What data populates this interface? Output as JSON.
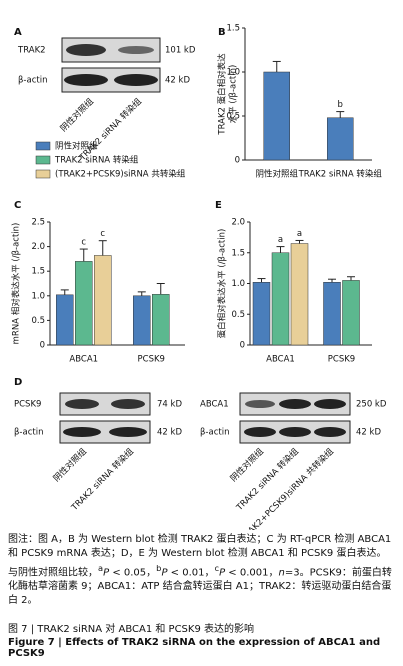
{
  "panel_a": {
    "label": "A",
    "bands": [
      "TRAK2",
      "β-actin"
    ],
    "sizes": [
      "101 kD",
      "42 kD"
    ],
    "lanes": [
      "阴性对照组",
      "TRAK2 siRNA 转染组"
    ]
  },
  "panel_d": {
    "label": "D",
    "left": {
      "bands": [
        "PCSK9",
        "β-actin"
      ],
      "sizes": [
        "74 kD",
        "42 kD"
      ],
      "lanes": [
        "阴性对照组",
        "TRAK2 siRNA 转染组"
      ]
    },
    "right": {
      "bands": [
        "ABCA1",
        "β-actin"
      ],
      "sizes": [
        "250 kD",
        "42 kD"
      ],
      "lanes": [
        "阴性对照组",
        "TRAK2 siRNA 转染组",
        "(TRAK2+PCSK9)siRNA 共转染组"
      ]
    }
  },
  "chart_data": [
    {
      "type": "bar",
      "panel": "B",
      "ylabel": [
        "TRAK2 蛋白相对表达",
        "水平 (/β-actin)"
      ],
      "categories": [
        "阴性对照组",
        "TRAK2 siRNA 转染组"
      ],
      "values": [
        1.0,
        0.48
      ],
      "errors": [
        0.12,
        0.07
      ],
      "annotations": [
        null,
        "b"
      ],
      "colors": [
        "#4a7ebb",
        "#4a7ebb"
      ],
      "ylim": [
        0,
        1.5
      ],
      "yticks": [
        0,
        0.5,
        {
          "value": 1,
          "label": "1.0"
        },
        1.5
      ]
    },
    {
      "type": "bar",
      "panel": "C",
      "ylabel": "mRNA 相对表达水平 (/β-actin)",
      "categories": [
        "ABCA1",
        "PCSK9"
      ],
      "series": [
        {
          "name": "阴性对照组",
          "color": "#4a7ebb",
          "values": [
            1.02,
            1.0
          ],
          "errors": [
            0.1,
            0.08
          ],
          "annotations": [
            null,
            null
          ]
        },
        {
          "name": "TRAK2 siRNA 转染组",
          "color": "#5cb88f",
          "values": [
            1.7,
            1.03
          ],
          "errors": [
            0.25,
            0.22
          ],
          "annotations": [
            "c",
            null
          ]
        },
        {
          "name": "(TRAK2+PCSK9)siRNA 共转染组",
          "color": "#e8cf98",
          "values": [
            1.82,
            null
          ],
          "errors": [
            0.3,
            null
          ],
          "annotations": [
            "c",
            null
          ]
        }
      ],
      "ylim": [
        0,
        2.5
      ],
      "yticks": [
        0,
        0.5,
        {
          "value": 1,
          "label": "1.0"
        },
        1.5,
        {
          "value": 2,
          "label": "2.0"
        },
        2.5
      ]
    },
    {
      "type": "bar",
      "panel": "E",
      "ylabel": "蛋白相对表达水平 (/β-actin)",
      "categories": [
        "ABCA1",
        "PCSK9"
      ],
      "series": [
        {
          "color": "#4a7ebb",
          "values": [
            1.02,
            1.02
          ],
          "errors": [
            0.06,
            0.05
          ],
          "annotations": [
            null,
            null
          ]
        },
        {
          "color": "#5cb88f",
          "values": [
            1.5,
            1.05
          ],
          "errors": [
            0.1,
            0.06
          ],
          "annotations": [
            "a",
            null
          ]
        },
        {
          "color": "#e8cf98",
          "values": [
            1.65,
            null
          ],
          "errors": [
            0.05,
            null
          ],
          "annotations": [
            "a",
            null
          ]
        }
      ],
      "ylim": [
        0,
        2.0
      ],
      "yticks": [
        0,
        0.5,
        {
          "value": 1,
          "label": "1.0"
        },
        1.5,
        {
          "value": 2,
          "label": "2.0"
        }
      ]
    }
  ],
  "caption": [
    "图注：图 A，B 为 Western blot 检测 TRAK2 蛋白表达；C 为 RT-qPCR 检测 ABCA1 和 PCSK9 mRNA 表达；D，E 为 Western blot 检测 ABCA1 和 PCSK9 蛋白表达。与阴性对照组比较，",
    "a",
    "P",
    " < 0.05，",
    "b",
    "P",
    " < 0.01，",
    "c",
    "P",
    " < 0.001，",
    "n",
    "=3。PCSK9：前蛋白转化酶枯草溶菌素 9；ABCA1：ATP 结合盒转运蛋白 A1；TRAK2：转运驱动蛋白结合蛋白 2。"
  ],
  "figure_title_cn": "图 7 | TRAK2 siRNA 对 ABCA1 和 PCSK9 表达的影响",
  "figure_title_en": "Figure 7 | Effects of TRAK2 siRNA on the expression of ABCA1 and PCSK9"
}
